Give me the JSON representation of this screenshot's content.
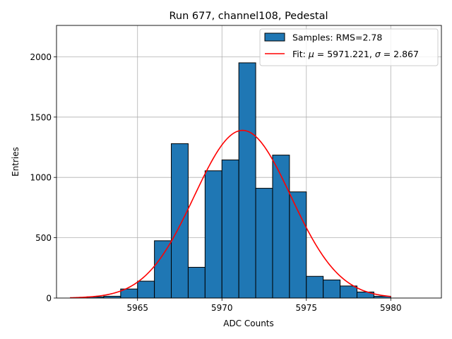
{
  "chart_data": {
    "type": "histogram",
    "title": "Run 677, channel108, Pedestal",
    "xlabel": "ADC Counts",
    "ylabel": "Entries",
    "xlim": [
      5960.2,
      5983.0
    ],
    "ylim": [
      0,
      2260
    ],
    "xticks": [
      5965,
      5970,
      5975,
      5980
    ],
    "yticks": [
      0,
      500,
      1000,
      1500,
      2000
    ],
    "grid": true,
    "legend_position": "top-right",
    "bin_width": 1.0,
    "bins": [
      {
        "x": 5962.0,
        "count": 10
      },
      {
        "x": 5963.0,
        "count": 15
      },
      {
        "x": 5964.0,
        "count": 75
      },
      {
        "x": 5965.0,
        "count": 140
      },
      {
        "x": 5966.0,
        "count": 475
      },
      {
        "x": 5967.0,
        "count": 1280
      },
      {
        "x": 5968.0,
        "count": 255
      },
      {
        "x": 5969.0,
        "count": 1055
      },
      {
        "x": 5970.0,
        "count": 1145
      },
      {
        "x": 5971.0,
        "count": 1950
      },
      {
        "x": 5972.0,
        "count": 910
      },
      {
        "x": 5973.0,
        "count": 1185
      },
      {
        "x": 5974.0,
        "count": 880
      },
      {
        "x": 5975.0,
        "count": 180
      },
      {
        "x": 5976.0,
        "count": 150
      },
      {
        "x": 5977.0,
        "count": 100
      },
      {
        "x": 5978.0,
        "count": 50
      },
      {
        "x": 5979.0,
        "count": 15
      }
    ],
    "fit": {
      "mu": 5971.221,
      "sigma": 2.867,
      "amplitude": 1390,
      "x_range": [
        5961.0,
        5980.0
      ]
    },
    "series": [
      {
        "name": "Samples: RMS=2.78",
        "color": "#1f77b4"
      },
      {
        "name": "Fit: μ = 5971.221, σ = 2.867",
        "color": "#ff0000"
      }
    ]
  },
  "legend": {
    "samples_label": "Samples: RMS=2.78",
    "fit_prefix": "Fit: ",
    "fit_mu_symbol": "μ",
    "fit_mu_value": " = 5971.221, ",
    "fit_sigma_symbol": "σ",
    "fit_sigma_value": " = 2.867"
  }
}
